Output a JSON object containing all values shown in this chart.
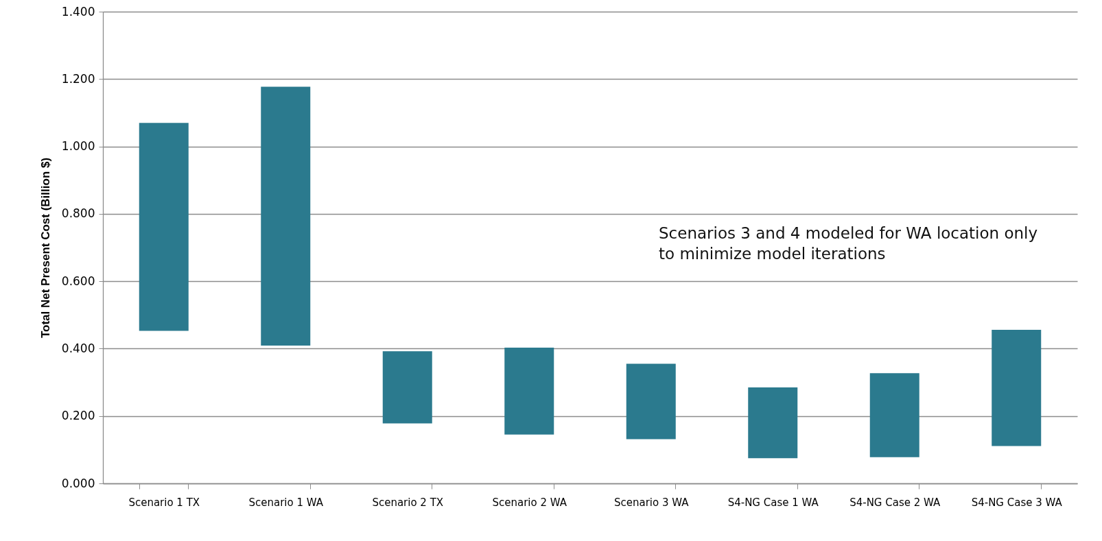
{
  "chart_data": {
    "type": "bar",
    "ylabel": "Total Net Present Cost (Billion $)",
    "categories": [
      "Scenario 1 TX",
      "Scenario 1 WA",
      "Scenario 2 TX",
      "Scenario 2 WA",
      "Scenario 3 WA",
      "S4-NG Case 1 WA",
      "S4-NG Case 2 WA",
      "S4-NG Case 3 WA"
    ],
    "base": [
      0.453,
      0.409,
      0.178,
      0.145,
      0.131,
      0.075,
      0.078,
      0.111
    ],
    "values": [
      0.617,
      0.768,
      0.214,
      0.258,
      0.224,
      0.21,
      0.249,
      0.345
    ],
    "color": "#2b7a8e",
    "ylim": [
      0,
      1.4
    ],
    "yticks": [
      {
        "value": 0,
        "label": "0.000"
      },
      {
        "value": 0.2,
        "label": "0.200"
      },
      {
        "value": 0.4,
        "label": "0.400"
      },
      {
        "value": 0.6,
        "label": "0.600"
      },
      {
        "value": 0.8,
        "label": "0.800"
      },
      {
        "value": 1.0,
        "label": "1.000"
      },
      {
        "value": 1.2,
        "label": "1.200"
      },
      {
        "value": 1.4,
        "label": "1.400"
      }
    ],
    "grid": "y",
    "annotations": [
      "Scenarios 3 and 4 modeled for WA location only to minimize model iterations"
    ]
  }
}
